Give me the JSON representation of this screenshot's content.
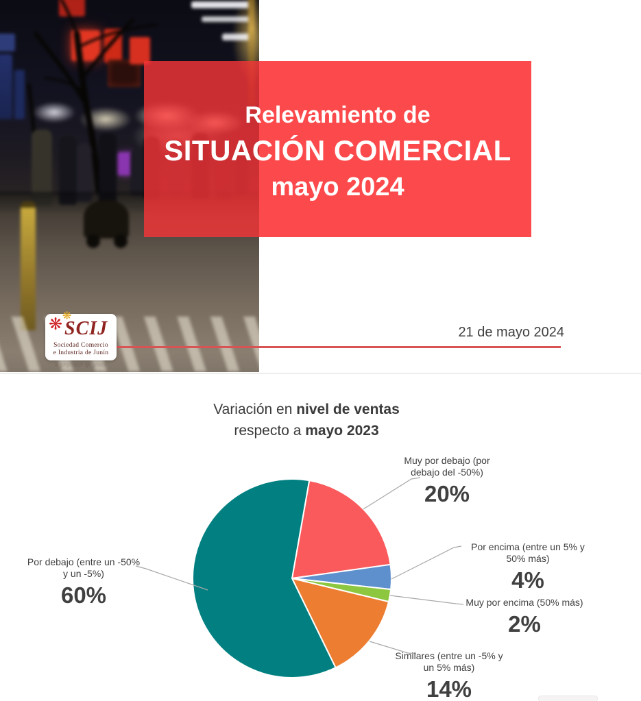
{
  "cover": {
    "title_line1": "Relevamiento de",
    "title_line2": "SITUACIÓN COMERCIAL",
    "title_line3": "mayo 2024",
    "date": "21 de mayo 2024",
    "banner_color": "#fc4a4c",
    "rule_color": "#d85454"
  },
  "logo": {
    "acronym": "SCIJ",
    "org_line1": "Sociedad  Comercio",
    "org_line2": "e  Industria de Junín",
    "flower_red_icon": "❋",
    "flower_gold_icon": "❋",
    "flower_red_color": "#cf1f24",
    "flower_gold_color": "#e2a71e"
  },
  "chart": {
    "title_regular1": "Variación en ",
    "title_bold1": "nivel de ventas",
    "title_regular2": "respecto a ",
    "title_bold2": "mayo 2023"
  },
  "chart_data": {
    "type": "pie",
    "title": "Variación en nivel de ventas respecto a mayo 2023",
    "start_angle_deg": 10,
    "legend_position": "callouts",
    "slices": [
      {
        "label": "Muy por debajo (por debajo del -50%)",
        "value": 20,
        "pct_label": "20%",
        "color": "#fb5a5c",
        "label_lines": [
          "Muy por debajo (por",
          "debajo del -50%)"
        ]
      },
      {
        "label": "Por encima (entre un 5% y 50% más)",
        "value": 4,
        "pct_label": "4%",
        "color": "#5e90cd",
        "label_lines": [
          "Por encima (entre un 5% y",
          "50% más)"
        ]
      },
      {
        "label": "Muy por encima (50% más)",
        "value": 2,
        "pct_label": "2%",
        "color": "#8dc63f",
        "label_lines": [
          "Muy por encima (50% más)"
        ]
      },
      {
        "label": "Similares (entre un -5% y un 5% más)",
        "value": 14,
        "pct_label": "14%",
        "color": "#ed7d31",
        "label_lines": [
          "Similares (entre un -5% y",
          "un 5% más)"
        ]
      },
      {
        "label": "Por debajo (entre un -50% y un -5%)",
        "value": 60,
        "pct_label": "60%",
        "color": "#028081",
        "label_lines": [
          "Por debajo (entre un -50%",
          "y un -5%)"
        ]
      }
    ]
  }
}
